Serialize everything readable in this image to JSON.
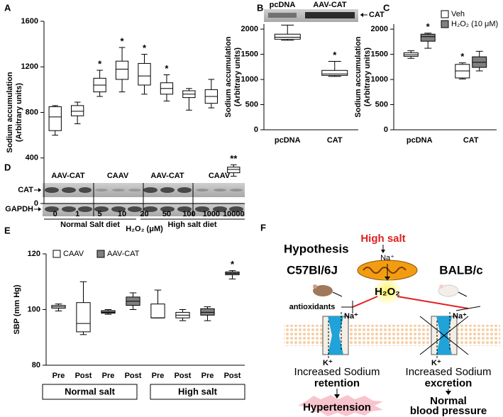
{
  "chart_data": [
    {
      "type": "box",
      "letter": "A",
      "ylabel": [
        "Sodium accumulation",
        "(Arbitrary units)"
      ],
      "xlabel": "H₂O₂ (μM)",
      "categories": [
        "0",
        "1",
        "5",
        "10",
        "20",
        "50",
        "100",
        "1000",
        "10000"
      ],
      "ylim": [
        0,
        1600
      ],
      "yticks": [
        0,
        400,
        800,
        1200,
        1600
      ],
      "color": "#ffffff",
      "boxes": [
        {
          "min": 600,
          "q1": 640,
          "median": 760,
          "q3": 850,
          "max": 860
        },
        {
          "min": 700,
          "q1": 770,
          "median": 810,
          "q3": 860,
          "max": 890
        },
        {
          "min": 940,
          "q1": 980,
          "median": 1040,
          "q3": 1100,
          "max": 1170
        },
        {
          "min": 980,
          "q1": 1090,
          "median": 1180,
          "q3": 1250,
          "max": 1370
        },
        {
          "min": 960,
          "q1": 1040,
          "median": 1120,
          "q3": 1230,
          "max": 1310
        },
        {
          "min": 900,
          "q1": 960,
          "median": 1010,
          "q3": 1060,
          "max": 1130
        },
        {
          "min": 820,
          "q1": 930,
          "median": 960,
          "q3": 990,
          "max": 1010
        },
        {
          "min": 840,
          "q1": 880,
          "median": 940,
          "q3": 1000,
          "max": 1090
        },
        {
          "min": 240,
          "q1": 270,
          "median": 300,
          "q3": 320,
          "max": 340
        }
      ],
      "annotations": [
        null,
        null,
        "*",
        "*",
        "*",
        "*",
        null,
        null,
        "**"
      ]
    },
    {
      "type": "box",
      "letter": "B",
      "ylabel": [
        "Sodium accumulation",
        "(Arbitrary units)"
      ],
      "blot_labels": [
        "pcDNA",
        "AAV-CAT"
      ],
      "blot_marker": "CAT",
      "categories": [
        "pcDNA",
        "CAT"
      ],
      "ylim": [
        0,
        2100
      ],
      "yticks": [
        0,
        500,
        1000,
        1500,
        2000
      ],
      "color": "#ffffff",
      "boxes": [
        {
          "min": 1780,
          "q1": 1800,
          "median": 1840,
          "q3": 1900,
          "max": 2080
        },
        {
          "min": 1060,
          "q1": 1080,
          "median": 1110,
          "q3": 1180,
          "max": 1360
        }
      ],
      "annotations": [
        null,
        "*"
      ]
    },
    {
      "type": "box",
      "letter": "C",
      "ylabel": [
        "Sodium accumulation",
        "(Arbitrary units)"
      ],
      "categories": [
        "pcDNA",
        "CAT"
      ],
      "ylim": [
        0,
        2100
      ],
      "yticks": [
        0,
        500,
        1000,
        1500,
        2000
      ],
      "legend": "top-right",
      "series": [
        {
          "name": "Veh",
          "color": "#ffffff",
          "boxes": [
            {
              "min": 1420,
              "q1": 1460,
              "median": 1490,
              "q3": 1530,
              "max": 1570
            },
            {
              "min": 1010,
              "q1": 1030,
              "median": 1170,
              "q3": 1300,
              "max": 1330
            }
          ],
          "annotations": [
            null,
            "*"
          ]
        },
        {
          "name": "H₂O₂ (10 μM)",
          "color": "#808080",
          "boxes": [
            {
              "min": 1620,
              "q1": 1760,
              "median": 1850,
              "q3": 1900,
              "max": 1920
            },
            {
              "min": 1170,
              "q1": 1240,
              "median": 1340,
              "q3": 1450,
              "max": 1560
            }
          ],
          "annotations": [
            "*",
            null
          ]
        }
      ]
    },
    {
      "type": "box",
      "letter": "E",
      "ylabel": [
        "SBP (mm Hg)"
      ],
      "categories": [
        "Pre",
        "Post",
        "Pre",
        "Post",
        "Pre",
        "Post",
        "Pre",
        "Post"
      ],
      "groups": [
        "Normal salt",
        "High salt"
      ],
      "ylim": [
        80,
        120
      ],
      "yticks": [
        80,
        100,
        120
      ],
      "legend": "top-left",
      "series": [
        {
          "name": "CAAV",
          "color": "#ffffff",
          "boxes": [
            {
              "min": 99.5,
              "q1": 100.5,
              "median": 101,
              "q3": 101.5,
              "max": 102
            },
            {
              "min": 91,
              "q1": 92,
              "median": 95,
              "q3": 102.5,
              "max": 110
            },
            null,
            null,
            {
              "min": 97,
              "q1": 97,
              "median": 97,
              "q3": 102,
              "max": 107
            },
            {
              "min": 96,
              "q1": 97,
              "median": 98,
              "q3": 99,
              "max": 100
            },
            null,
            null
          ],
          "annotations": [
            null,
            null,
            null,
            null,
            null,
            null,
            null,
            null
          ]
        },
        {
          "name": "AAV-CAT",
          "color": "#808080",
          "boxes": [
            null,
            null,
            {
              "min": 98.3,
              "q1": 98.7,
              "median": 99,
              "q3": 99.6,
              "max": 100
            },
            {
              "min": 100,
              "q1": 101.5,
              "median": 103,
              "q3": 104.5,
              "max": 106
            },
            null,
            null,
            {
              "min": 96,
              "q1": 98,
              "median": 99,
              "q3": 100.3,
              "max": 101
            },
            {
              "min": 111,
              "q1": 112.5,
              "median": 113,
              "q3": 113.5,
              "max": 114
            }
          ],
          "annotations": [
            null,
            null,
            null,
            null,
            null,
            null,
            null,
            "*"
          ]
        }
      ]
    }
  ],
  "blot": {
    "letter": "D",
    "lane_groups": [
      "AAV-CAT",
      "CAAV",
      "AAV-CAT",
      "CAAV"
    ],
    "rows": [
      "CAT",
      "GAPDH"
    ],
    "diets": [
      "Normal Salt diet",
      "High salt diet"
    ]
  },
  "hypothesis": {
    "letter": "F",
    "title": "Hypothesis",
    "stimulus": "High salt",
    "na_in": "Na⁺",
    "strains": [
      "C57Bl/6J",
      "BALB/c"
    ],
    "ros": "H₂O₂",
    "inhibitor": "antioxidants",
    "channels": [
      {
        "na": "Na⁺",
        "k": "K⁺",
        "effect": "Increased Sodium",
        "result": "retention",
        "outcome": [
          "Hypertension"
        ]
      },
      {
        "na": "Na⁺",
        "k": "K⁺",
        "effect": "Increased Sodium",
        "result": "excretion",
        "outcome": [
          "Normal",
          "blood pressure"
        ]
      }
    ]
  }
}
